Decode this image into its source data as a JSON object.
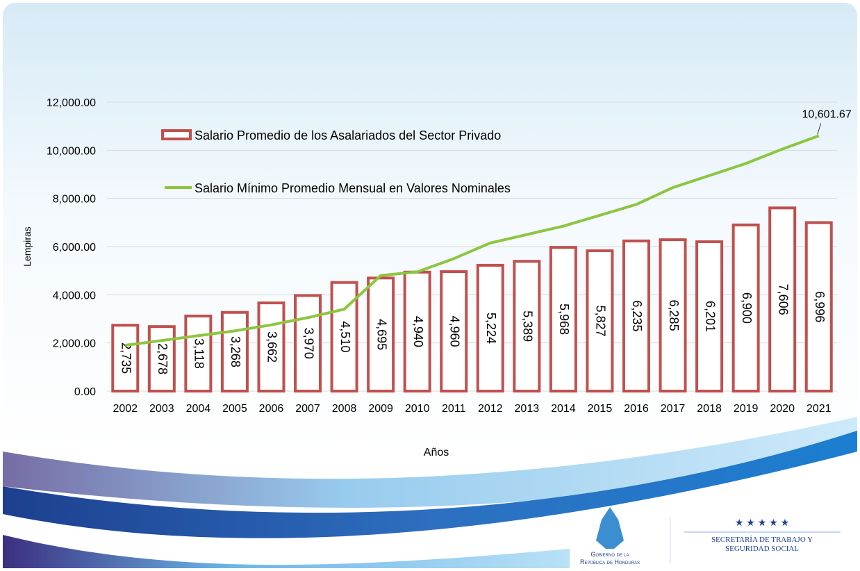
{
  "chart_data": {
    "type": "bar",
    "categories": [
      "2002",
      "2003",
      "2004",
      "2005",
      "2006",
      "2007",
      "2008",
      "2009",
      "2010",
      "2011",
      "2012",
      "2013",
      "2014",
      "2015",
      "2016",
      "2017",
      "2018",
      "2019",
      "2020",
      "2021"
    ],
    "series": [
      {
        "name": "Salario Promedio de los Asalariados del Sector Privado",
        "type": "bar",
        "color": "#c0504d",
        "values": [
          2735,
          2678,
          3118,
          3268,
          3662,
          3970,
          4510,
          4695,
          4940,
          4960,
          5224,
          5389,
          5968,
          5827,
          6235,
          6285,
          6201,
          6900,
          7606,
          6996
        ],
        "value_labels": [
          "2,735",
          "2,678",
          "3,118",
          "3,268",
          "3,662",
          "3,970",
          "4,510",
          "4,695",
          "4,940",
          "4,960",
          "5,224",
          "5,389",
          "5,968",
          "5,827",
          "6,235",
          "6,285",
          "6,201",
          "6,900",
          "7,606",
          "6,996"
        ]
      },
      {
        "name": "Salario Mínimo Promedio Mensual en Valores Nominales",
        "type": "line",
        "color": "#8cc63f",
        "values": [
          1900,
          2100,
          2300,
          2500,
          2750,
          3050,
          3400,
          4800,
          4950,
          5500,
          6150,
          6500,
          6850,
          7300,
          7750,
          8450,
          8950,
          9450,
          10050,
          10601.67
        ],
        "value_labels": [
          null,
          null,
          null,
          null,
          null,
          null,
          null,
          null,
          null,
          null,
          null,
          null,
          null,
          null,
          null,
          null,
          null,
          null,
          null,
          "10,601.67"
        ]
      }
    ],
    "x_label": "Años",
    "y_label": "Lempiras",
    "ylim": [
      0,
      12000
    ],
    "yticks": [
      {
        "value": 0,
        "label": "0.00"
      },
      {
        "value": 2000,
        "label": "2,000.00"
      },
      {
        "value": 4000,
        "label": "4,000.00"
      },
      {
        "value": 6000,
        "label": "6,000.00"
      },
      {
        "value": 8000,
        "label": "8,000.00"
      },
      {
        "value": 10000,
        "label": "10,000.00"
      },
      {
        "value": 12000,
        "label": "12,000.00"
      }
    ],
    "grid": true
  },
  "branding": {
    "government": [
      "Gobierno de la",
      "República de Honduras"
    ],
    "ministry": [
      "Secretaría de Trabajo y",
      "Seguridad Social"
    ]
  }
}
